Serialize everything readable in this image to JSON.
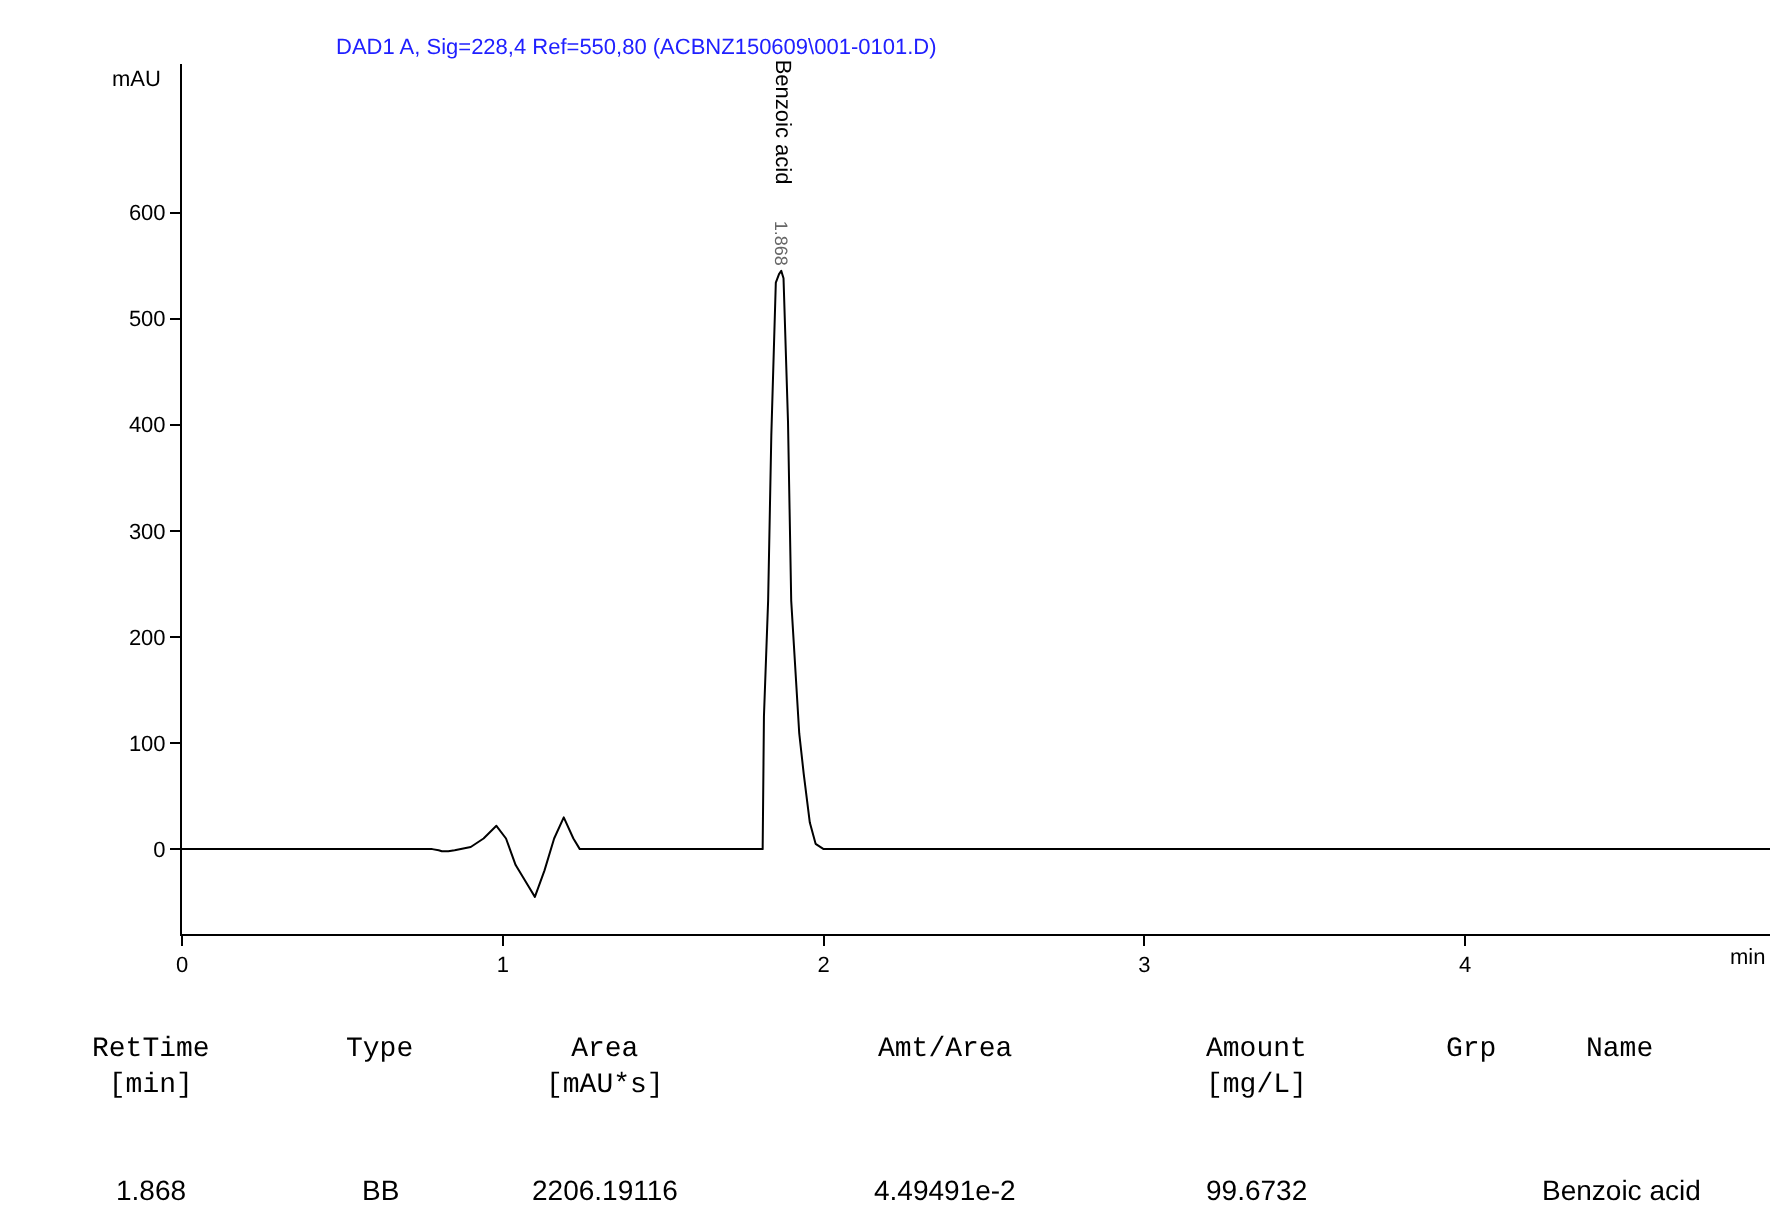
{
  "chart_data": {
    "type": "line",
    "title": "DAD1 A, Sig=228,4 Ref=550,80 (ACBNZ150609\\001-0101.D)",
    "xlabel": "min",
    "ylabel": "mAU",
    "x": [
      0,
      0.78,
      0.8,
      0.81,
      0.83,
      0.85,
      0.9,
      0.94,
      0.98,
      1.01,
      1.04,
      1.08,
      1.1,
      1.13,
      1.16,
      1.19,
      1.22,
      1.24,
      1.5,
      1.81,
      1.814,
      1.827,
      1.837,
      1.851,
      1.861,
      1.868,
      1.875,
      1.889,
      1.899,
      1.924,
      1.938,
      1.957,
      1.975,
      2.0,
      4.95
    ],
    "series": [
      {
        "color": "#000000",
        "values": [
          0,
          0,
          -1,
          -2,
          -2,
          -1,
          2,
          10,
          22,
          10,
          -15,
          -35,
          -45,
          -20,
          10,
          30,
          10,
          0,
          0,
          0,
          125,
          234,
          390,
          534,
          542,
          545,
          538,
          403,
          234,
          109,
          71,
          25,
          5,
          0,
          0
        ]
      }
    ],
    "xlim": [
      0,
      4.95
    ],
    "xticks": [
      0,
      1,
      2,
      3,
      4
    ],
    "ylim": [
      -80,
      740
    ],
    "yticks": [
      0,
      100,
      200,
      300,
      400,
      500,
      600
    ],
    "marker": "none",
    "line_style": "solid",
    "annotations": [
      {
        "text": "1.868",
        "x": 1.868,
        "y": 545
      },
      "Benzoic acid",
      "RetTime\n[min]",
      "Type",
      "Area\n[mAU*s]",
      "Amt/Area",
      "Amount\n[mg/L]",
      "Grp",
      "Name",
      "1.868",
      "BB",
      "2206.19116",
      "4.49491e-2",
      "99.6732",
      "Benzoic acid"
    ]
  }
}
